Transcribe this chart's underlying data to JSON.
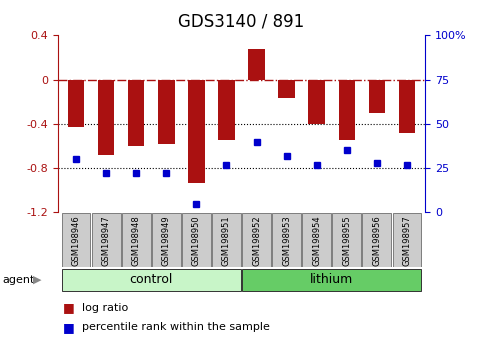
{
  "title": "GDS3140 / 891",
  "samples": [
    "GSM198946",
    "GSM198947",
    "GSM198948",
    "GSM198949",
    "GSM198950",
    "GSM198951",
    "GSM198952",
    "GSM198953",
    "GSM198954",
    "GSM198955",
    "GSM198956",
    "GSM198957"
  ],
  "log_ratio": [
    -0.43,
    -0.68,
    -0.6,
    -0.58,
    -0.93,
    -0.55,
    0.28,
    -0.17,
    -0.4,
    -0.55,
    -0.3,
    -0.48
  ],
  "percentile_rank": [
    30,
    22,
    22,
    22,
    5,
    27,
    40,
    32,
    27,
    35,
    28,
    27
  ],
  "bar_color": "#aa1111",
  "dot_color": "#0000cc",
  "ylim_left": [
    -1.2,
    0.4
  ],
  "ylim_right": [
    0,
    100
  ],
  "yticks_left": [
    -1.2,
    -0.8,
    -0.4,
    0.0,
    0.4
  ],
  "yticks_right": [
    0,
    25,
    50,
    75,
    100
  ],
  "dotted_lines": [
    -0.4,
    -0.8
  ],
  "bar_width": 0.55,
  "sample_box_color": "#cccccc",
  "control_color": "#c8f5c8",
  "lithium_color": "#66cc66",
  "title_fontsize": 12,
  "tick_fontsize": 8,
  "group_fontsize": 9,
  "legend_fontsize": 8
}
